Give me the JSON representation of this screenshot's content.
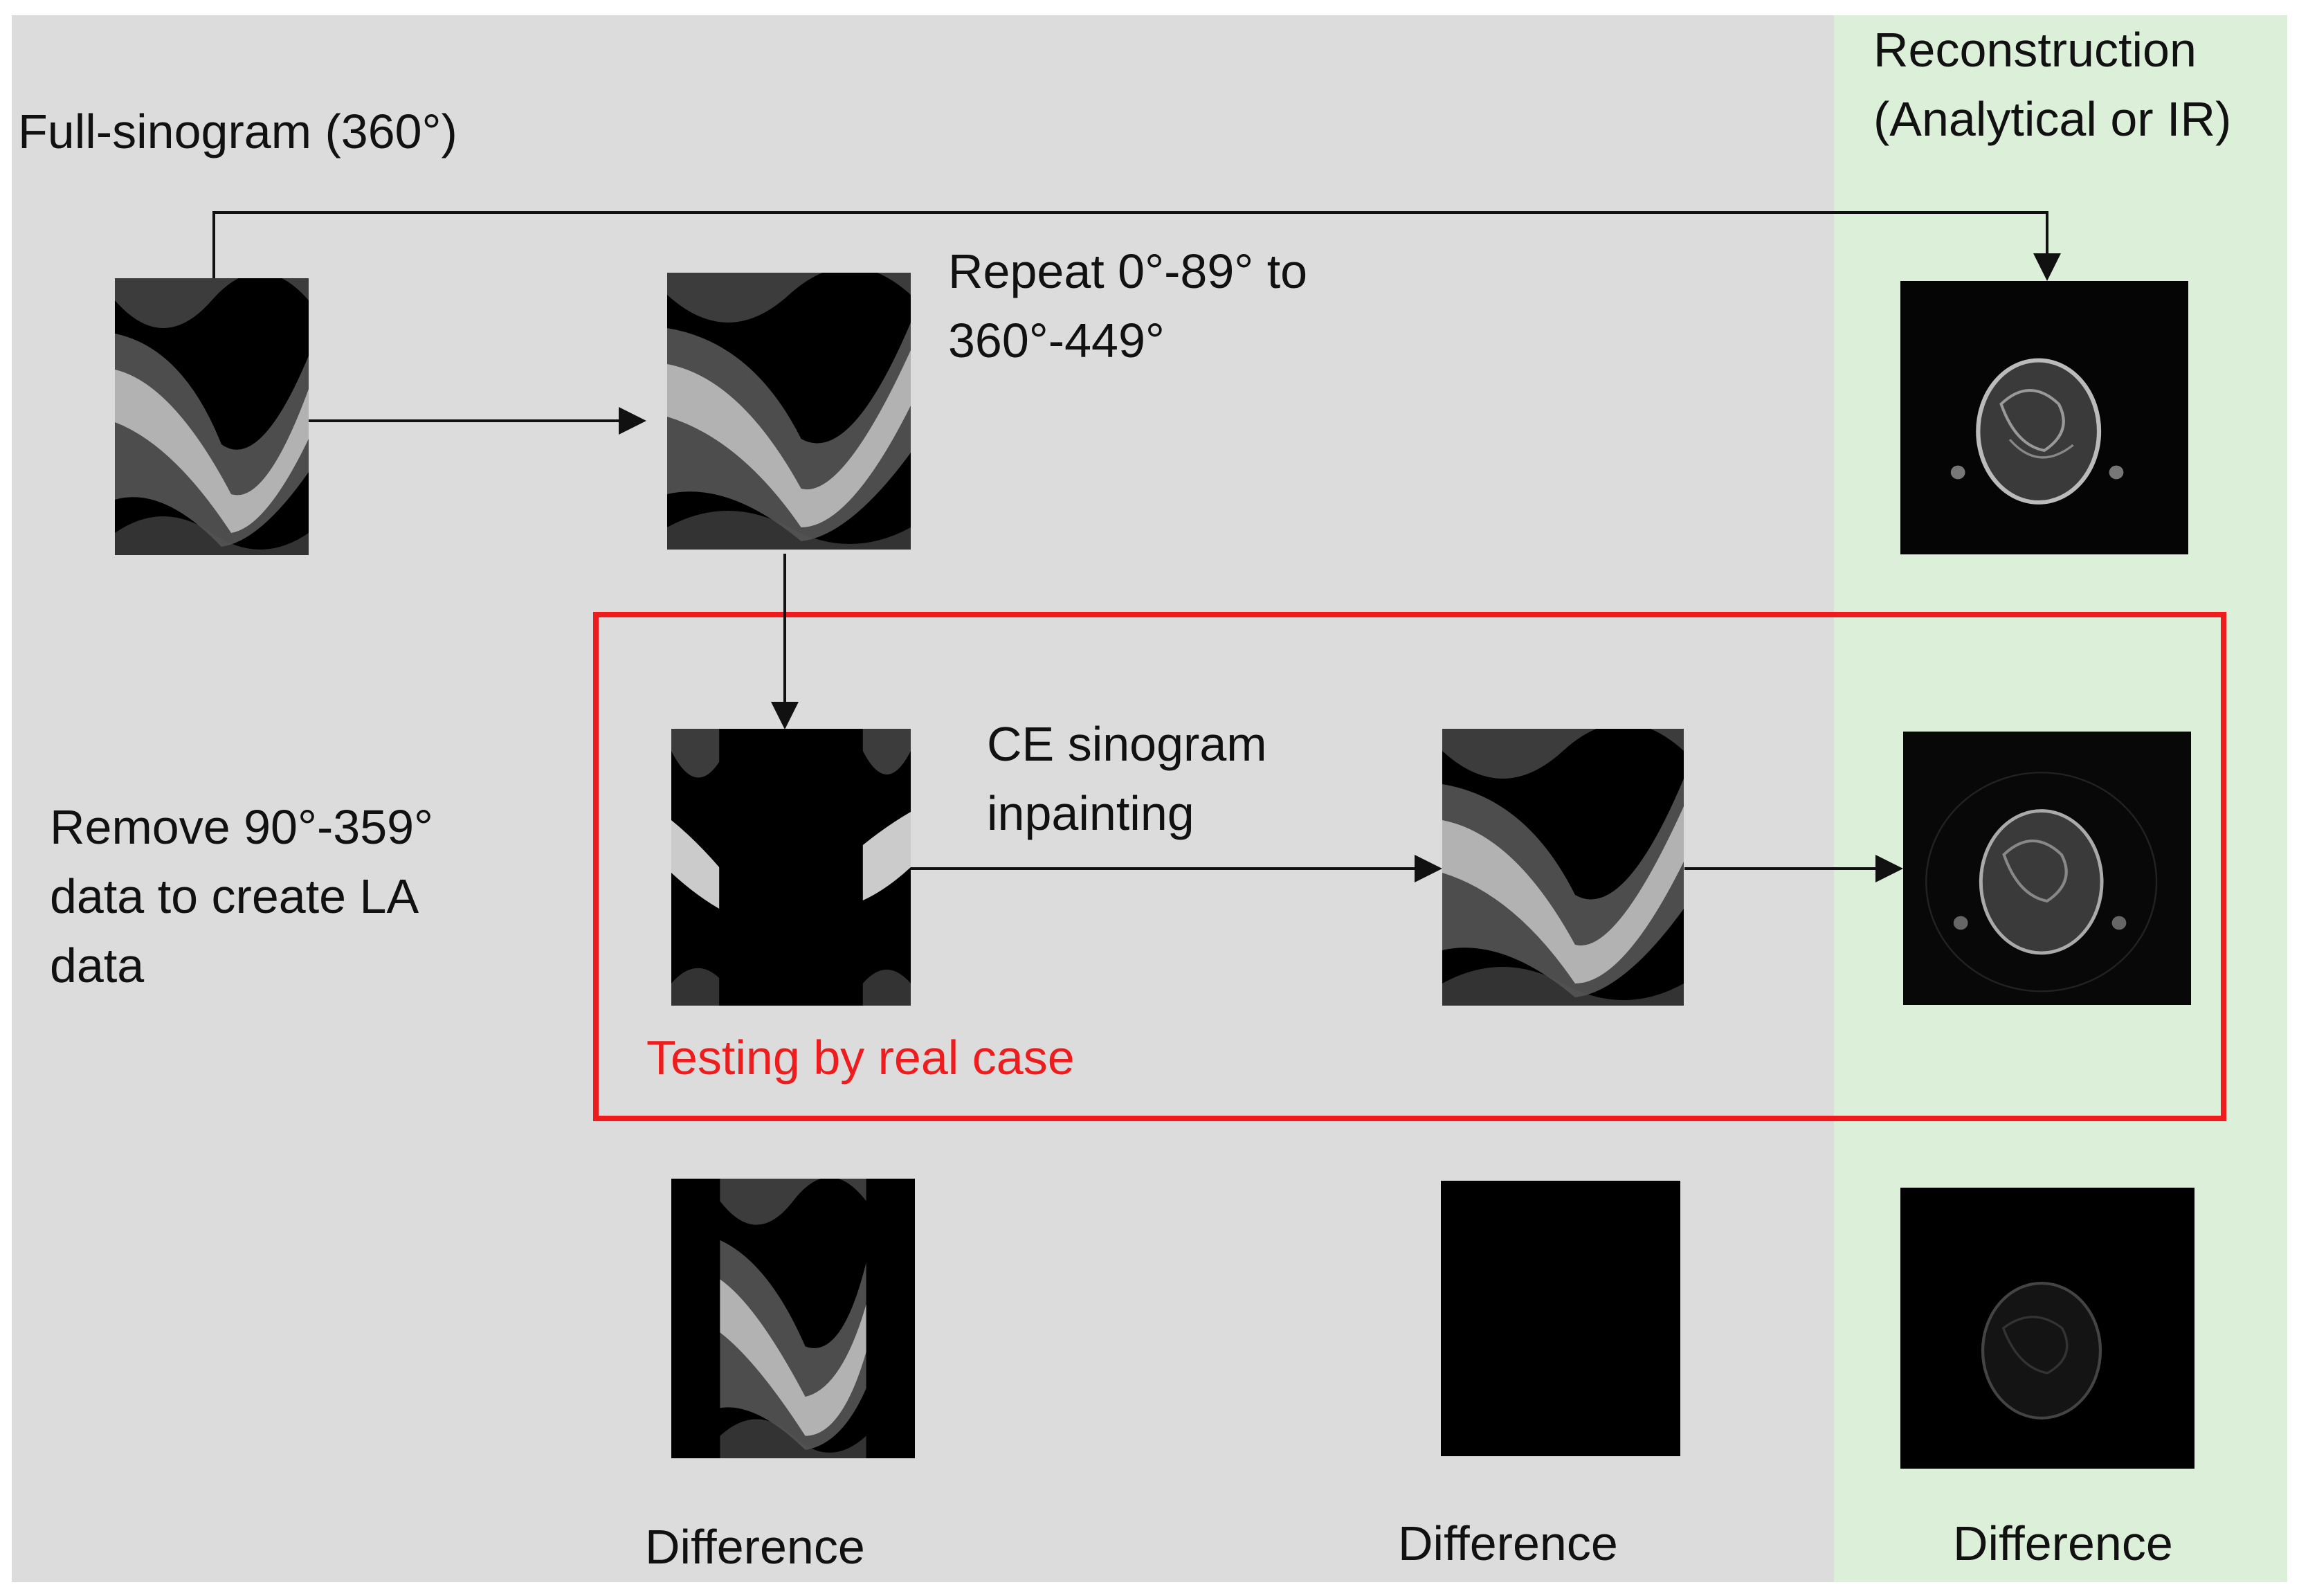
{
  "labels": {
    "full_sinogram": "Full-sinogram (360°)",
    "repeat": "Repeat 0°-89° to\n360°-449°",
    "reconstruction": "Reconstruction\n(Analytical or IR)",
    "remove": "Remove 90°-359°\ndata to create LA\ndata",
    "ce_inpainting": "CE sinogram\ninpainting",
    "testing": "Testing by real case",
    "difference_1": "Difference",
    "difference_2": "Difference",
    "difference_3": "Difference"
  },
  "colors": {
    "gray_panel": "#dcdcdc",
    "green_panel": "#dcefd8",
    "highlight_box": "#ee1c1c",
    "arrow": "#111111"
  }
}
